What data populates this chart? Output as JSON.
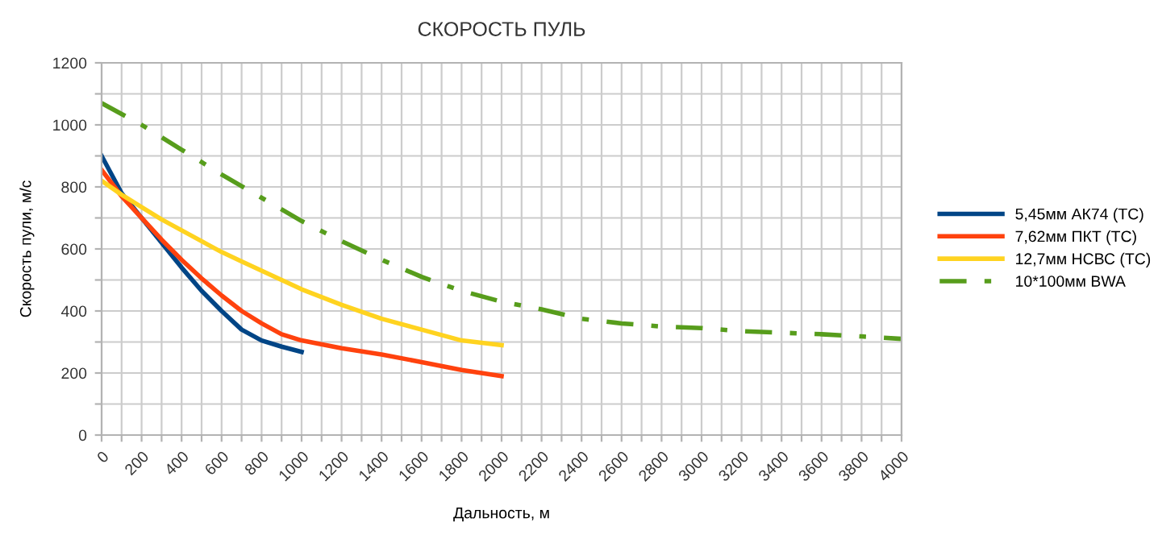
{
  "chart_data": {
    "type": "line",
    "title": "СКОРОСТЬ ПУЛЬ",
    "xlabel": "Дальность, м",
    "ylabel": "Скорость пули, м/с",
    "xlim": [
      0,
      4000
    ],
    "ylim": [
      0,
      1200
    ],
    "xticks": [
      0,
      {
        "value": 100,
        "label": null
      },
      200,
      {
        "value": 300,
        "label": null
      },
      400,
      {
        "value": 500,
        "label": null
      },
      600,
      {
        "value": 700,
        "label": null
      },
      800,
      {
        "value": 900,
        "label": null
      },
      1000,
      {
        "value": 1100,
        "label": null
      },
      1200,
      {
        "value": 1300,
        "label": null
      },
      1400,
      {
        "value": 1500,
        "label": null
      },
      1600,
      {
        "value": 1700,
        "label": null
      },
      1800,
      {
        "value": 1900,
        "label": null
      },
      2000,
      {
        "value": 2100,
        "label": null
      },
      2200,
      {
        "value": 2300,
        "label": null
      },
      2400,
      {
        "value": 2500,
        "label": null
      },
      2600,
      {
        "value": 2700,
        "label": null
      },
      2800,
      {
        "value": 2900,
        "label": null
      },
      3000,
      {
        "value": 3100,
        "label": null
      },
      3200,
      {
        "value": 3300,
        "label": null
      },
      3400,
      {
        "value": 3500,
        "label": null
      },
      3600,
      {
        "value": 3700,
        "label": null
      },
      3800,
      {
        "value": 3900,
        "label": null
      },
      4000
    ],
    "yticks": [
      0,
      {
        "value": 100,
        "label": null
      },
      200,
      {
        "value": 300,
        "label": null
      },
      400,
      {
        "value": 500,
        "label": null
      },
      600,
      {
        "value": 700,
        "label": null
      },
      800,
      {
        "value": 900,
        "label": null
      },
      1000,
      {
        "value": 1100,
        "label": null
      },
      1200
    ],
    "grid": true,
    "legend": "right",
    "marker": "none",
    "series": [
      {
        "name": "5,45мм АК74 (ТС)",
        "color": "#004586",
        "line_style": "solid",
        "x": [
          0,
          100,
          200,
          300,
          400,
          500,
          600,
          700,
          800,
          900,
          1000
        ],
        "values": [
          900,
          780,
          700,
          620,
          540,
          465,
          400,
          340,
          305,
          285,
          268
        ]
      },
      {
        "name": "7,62мм ПКТ (ТС)",
        "color": "#ff420e",
        "line_style": "solid",
        "x": [
          0,
          100,
          200,
          300,
          400,
          500,
          600,
          700,
          800,
          900,
          1000,
          1200,
          1400,
          1600,
          1800,
          2000
        ],
        "values": [
          855,
          770,
          700,
          630,
          565,
          505,
          450,
          400,
          360,
          325,
          305,
          280,
          260,
          235,
          210,
          190
        ]
      },
      {
        "name": "12,7мм НСВС (ТС)",
        "color": "#ffd320",
        "line_style": "solid",
        "x": [
          0,
          100,
          200,
          300,
          400,
          500,
          600,
          700,
          800,
          900,
          1000,
          1200,
          1400,
          1600,
          1800,
          2000
        ],
        "values": [
          820,
          775,
          735,
          695,
          660,
          625,
          590,
          560,
          530,
          500,
          470,
          420,
          375,
          340,
          305,
          290
        ]
      },
      {
        "name": "10*100мм BWA",
        "color": "#579d1c",
        "line_style": "dashdot",
        "x": [
          0,
          200,
          400,
          600,
          800,
          1000,
          1200,
          1400,
          1600,
          1800,
          2000,
          2200,
          2400,
          2600,
          2800,
          3000,
          3200,
          3400,
          3600,
          3800,
          4000
        ],
        "values": [
          1070,
          1000,
          920,
          840,
          765,
          690,
          625,
          565,
          510,
          465,
          430,
          405,
          375,
          360,
          350,
          345,
          335,
          330,
          325,
          318,
          310
        ]
      }
    ]
  }
}
